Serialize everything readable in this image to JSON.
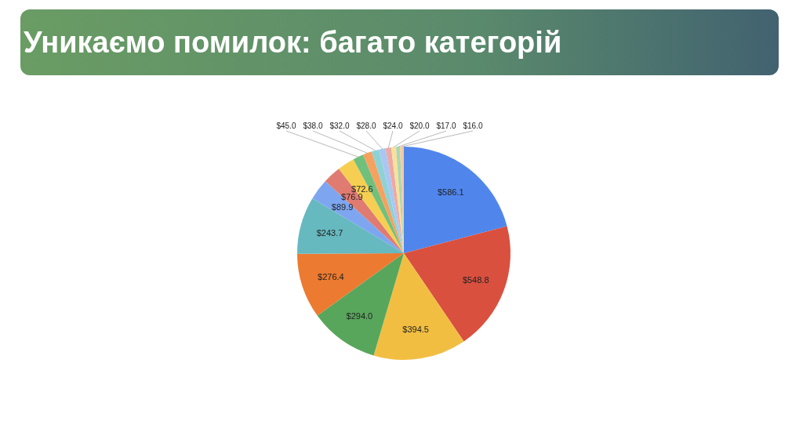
{
  "chart_data": {
    "type": "pie",
    "title": "Уникаємо помилок: багато категорій",
    "categories": [
      null,
      null,
      null,
      null,
      null,
      null,
      null,
      null,
      null,
      null,
      null,
      null,
      null,
      null,
      null,
      null,
      null
    ],
    "values": [
      586.1,
      548.8,
      394.5,
      294.0,
      276.4,
      243.7,
      89.9,
      76.9,
      72.6,
      45.0,
      38.0,
      32.0,
      28.0,
      24.0,
      20.0,
      17.0,
      16.0
    ],
    "value_labels": [
      "$586.1",
      "$548.8",
      "$394.5",
      "$294.0",
      "$276.4",
      "$243.7",
      "$89.9",
      "$76.9",
      "$72.6",
      "$45.0",
      "$38.0",
      "$32.0",
      "$28.0",
      "$24.0",
      "$20.0",
      "$17.0",
      "$16.0"
    ],
    "colors": [
      "#5086ec",
      "#d9503f",
      "#f2be42",
      "#58a65c",
      "#ec7a30",
      "#66b9bf",
      "#7ea6f0",
      "#e07b72",
      "#f6cf52",
      "#71bf7d",
      "#f5a15f",
      "#8ed2d6",
      "#aac7f3",
      "#ecaaa4",
      "#f9e09c",
      "#a9d8b0",
      "#f7c9a0"
    ],
    "legend": false
  }
}
